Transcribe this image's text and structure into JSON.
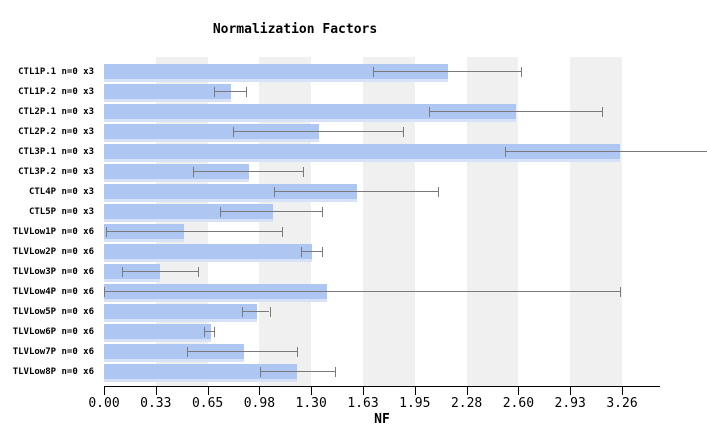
{
  "chart_data": {
    "type": "bar",
    "orientation": "horizontal",
    "title": "Normalization Factors",
    "xlabel": "NF",
    "xlim": [
      0,
      3.5
    ],
    "grid": "alternating-vertical-bands",
    "legend": "none",
    "xticks": [
      {
        "value": 0.0,
        "label": "0.00"
      },
      {
        "value": 0.3255,
        "label": "0.33"
      },
      {
        "value": 0.651,
        "label": "0.65"
      },
      {
        "value": 0.9765,
        "label": "0.98"
      },
      {
        "value": 1.302,
        "label": "1.30"
      },
      {
        "value": 1.6275,
        "label": "1.63"
      },
      {
        "value": 1.953,
        "label": "1.95"
      },
      {
        "value": 2.2785,
        "label": "2.28"
      },
      {
        "value": 2.604,
        "label": "2.60"
      },
      {
        "value": 2.9295,
        "label": "2.93"
      },
      {
        "value": 3.255,
        "label": "3.26"
      }
    ],
    "stripe_bands": [
      [
        0.3255,
        0.651
      ],
      [
        0.9765,
        1.302
      ],
      [
        1.6275,
        1.953
      ],
      [
        2.2785,
        2.604
      ],
      [
        2.9295,
        3.255
      ]
    ],
    "categories": [
      "CTL1P.1 n=0 x3",
      "CTL1P.2 n=0 x3",
      "CTL2P.1 n=0 x3",
      "CTL2P.2 n=0 x3",
      "CTL3P.1 n=0 x3",
      "CTL3P.2 n=0 x3",
      "CTL4P n=0 x3",
      "CTL5P n=0 x3",
      "TLVLow1P n=0 x6",
      "TLVLow2P n=0 x6",
      "TLVLow3P n=0 x6",
      "TLVLow4P n=0 x6",
      "TLVLow5P n=0 x6",
      "TLVLow6P n=0 x6",
      "TLVLow7P n=0 x6",
      "TLVLow8P n=0 x6"
    ],
    "values": [
      2.16,
      0.8,
      2.59,
      1.35,
      3.24,
      0.91,
      1.59,
      1.06,
      0.5,
      1.31,
      0.35,
      1.4,
      0.96,
      0.67,
      0.88,
      1.21
    ],
    "error_low": [
      1.69,
      0.69,
      2.04,
      0.81,
      2.52,
      0.56,
      1.07,
      0.73,
      0.01,
      1.24,
      0.11,
      0.0,
      0.87,
      0.63,
      0.52,
      0.98
    ],
    "error_high": [
      2.62,
      0.89,
      3.13,
      1.88,
      3.79,
      1.25,
      2.1,
      1.37,
      1.12,
      1.37,
      0.59,
      3.24,
      1.04,
      0.69,
      1.21,
      1.45
    ],
    "error_high_capped": [
      true,
      true,
      true,
      true,
      false,
      true,
      true,
      true,
      true,
      true,
      true,
      true,
      true,
      true,
      true,
      true
    ],
    "colors": {
      "bar": "#aec6f2",
      "bar_bottom_edge": "#d7e1f8",
      "band_gray": "#f0f0f0",
      "error_bar": "#7a7a7a",
      "axis": "#000000",
      "text": "#000000",
      "background": "#ffffff"
    }
  }
}
